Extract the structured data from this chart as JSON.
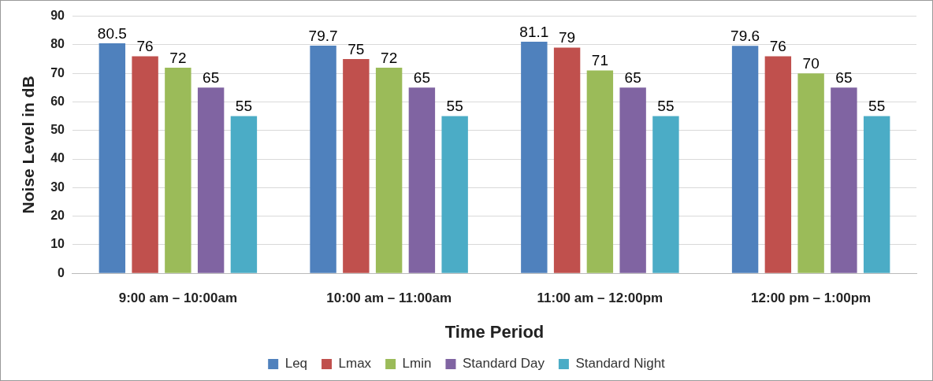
{
  "chart_data": {
    "type": "bar",
    "xlabel": "Time Period",
    "ylabel": "Noise Level in dB",
    "categories": [
      "9:00 am – 10:00am",
      "10:00 am – 11:00am",
      "11:00 am – 12:00pm",
      "12:00 pm – 1:00pm"
    ],
    "series": [
      {
        "name": "Leq",
        "color": "#4f81bd",
        "values": [
          80.5,
          79.7,
          81.1,
          79.6
        ]
      },
      {
        "name": "Lmax",
        "color": "#c0504d",
        "values": [
          76,
          75,
          79,
          76
        ]
      },
      {
        "name": "Lmin",
        "color": "#9bbb59",
        "values": [
          72,
          72,
          71,
          70
        ]
      },
      {
        "name": "Standard Day",
        "color": "#8064a2",
        "values": [
          65,
          65,
          65,
          65
        ]
      },
      {
        "name": "Standard Night",
        "color": "#4bacc6",
        "values": [
          55,
          55,
          55,
          55
        ]
      }
    ],
    "ylim": [
      0,
      90
    ],
    "yticks": [
      0,
      10,
      20,
      30,
      40,
      50,
      60,
      70,
      80,
      90
    ],
    "grid": "y",
    "legend": "bottom",
    "data_labels": true
  }
}
